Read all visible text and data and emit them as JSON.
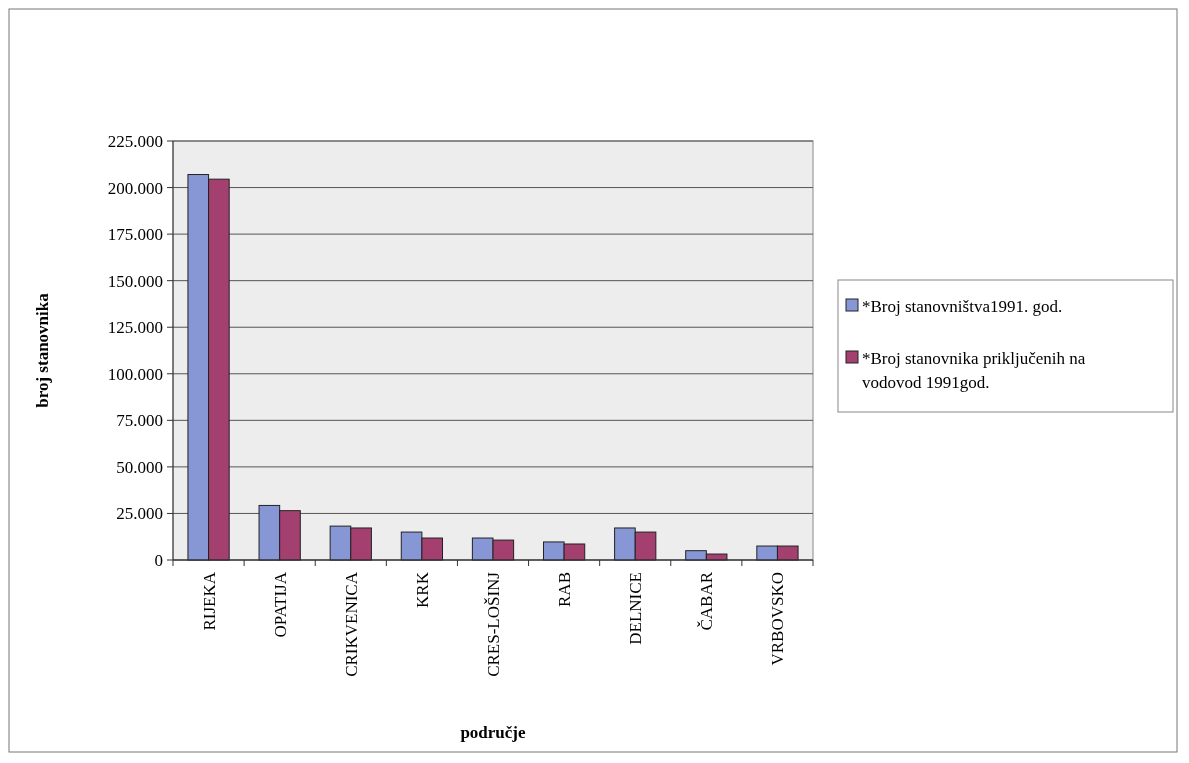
{
  "chart_data": {
    "type": "bar",
    "xlabel": "područje",
    "ylabel": "broj stanovnika",
    "categories": [
      "RIJEKA",
      "OPATIJA",
      "CRIKVENICA",
      "KRK",
      "CRES-LOŠINJ",
      "RAB",
      "DELNICE",
      "ČABAR",
      "VRBOVSKO"
    ],
    "series": [
      {
        "name": "*Broj stanovništva1991. god.",
        "color": "#8797d6",
        "values": [
          207000,
          29300,
          18200,
          15000,
          11800,
          9700,
          17200,
          5000,
          7500
        ]
      },
      {
        "name": "*Broj stanovnika priključenih na vodovod 1991god.",
        "color": "#a3406f",
        "values": [
          204500,
          26500,
          17200,
          11800,
          10700,
          8600,
          15000,
          3200,
          7500
        ]
      }
    ],
    "ylim": [
      0,
      225000
    ],
    "yticks": [
      {
        "value": 0,
        "label": "0"
      },
      {
        "value": 25000,
        "label": "25.000"
      },
      {
        "value": 50000,
        "label": "50.000"
      },
      {
        "value": 75000,
        "label": "75.000"
      },
      {
        "value": 100000,
        "label": "100.000"
      },
      {
        "value": 125000,
        "label": "125.000"
      },
      {
        "value": 150000,
        "label": "150.000"
      },
      {
        "value": 175000,
        "label": "175.000"
      },
      {
        "value": 200000,
        "label": "200.000"
      },
      {
        "value": 225000,
        "label": "225.000"
      }
    ],
    "grid": "y",
    "legend": "right"
  }
}
